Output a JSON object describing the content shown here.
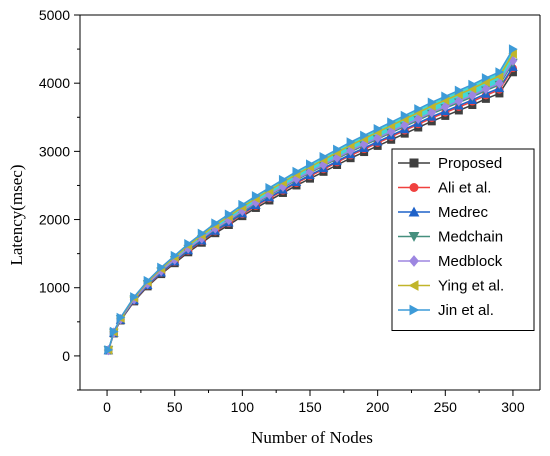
{
  "chart_data": {
    "type": "line",
    "title": "",
    "xlabel": "Number of Nodes",
    "ylabel": "Latency(msec)",
    "xlim": [
      -20,
      320
    ],
    "ylim": [
      -500,
      5000
    ],
    "x_ticks": [
      0,
      50,
      100,
      150,
      200,
      250,
      300
    ],
    "y_ticks": [
      0,
      1000,
      2000,
      3000,
      4000,
      5000
    ],
    "x": [
      1,
      5,
      10,
      20,
      30,
      40,
      50,
      60,
      70,
      80,
      90,
      100,
      110,
      120,
      130,
      140,
      150,
      160,
      170,
      180,
      190,
      200,
      210,
      220,
      230,
      240,
      250,
      260,
      270,
      280,
      290,
      300
    ],
    "grid": false,
    "legend_position": "right",
    "series": [
      {
        "name": "Proposed",
        "marker": "square",
        "color": "#3f3f3f",
        "values": [
          80,
          330,
          520,
          800,
          1020,
          1200,
          1360,
          1520,
          1660,
          1800,
          1920,
          2050,
          2170,
          2280,
          2390,
          2500,
          2600,
          2700,
          2800,
          2900,
          2990,
          3080,
          3170,
          3260,
          3350,
          3440,
          3520,
          3600,
          3680,
          3770,
          3850,
          4160
        ]
      },
      {
        "name": "Ali et al.",
        "marker": "circle",
        "color": "#f0413f",
        "values": [
          82,
          335,
          527,
          811,
          1034,
          1217,
          1379,
          1541,
          1683,
          1825,
          1947,
          2079,
          2200,
          2312,
          2423,
          2535,
          2636,
          2738,
          2839,
          2941,
          3032,
          3123,
          3214,
          3306,
          3397,
          3488,
          3569,
          3650,
          3731,
          3822,
          3904,
          4220
        ]
      },
      {
        "name": "Medrec",
        "marker": "triangle-up",
        "color": "#1f62c9",
        "values": [
          83,
          337,
          530,
          816,
          1040,
          1224,
          1387,
          1550,
          1693,
          1836,
          1958,
          2091,
          2213,
          2326,
          2438,
          2550,
          2652,
          2754,
          2856,
          2958,
          3050,
          3142,
          3233,
          3325,
          3417,
          3509,
          3590,
          3672,
          3754,
          3845,
          3927,
          4240
        ]
      },
      {
        "name": "Medchain",
        "marker": "triangle-down",
        "color": "#458f7e",
        "values": [
          84,
          341,
          537,
          826,
          1053,
          1239,
          1404,
          1569,
          1714,
          1859,
          1982,
          2117,
          2240,
          2354,
          2468,
          2581,
          2685,
          2788,
          2891,
          2994,
          3087,
          3180,
          3273,
          3366,
          3458,
          3551,
          3634,
          3716,
          3799,
          3892,
          3975,
          4300
        ]
      },
      {
        "name": "Medblock",
        "marker": "diamond",
        "color": "#9d86e1",
        "values": [
          85,
          343,
          540,
          831,
          1059,
          1246,
          1412,
          1578,
          1724,
          1869,
          1994,
          2129,
          2253,
          2368,
          2482,
          2596,
          2700,
          2804,
          2907,
          3011,
          3105,
          3198,
          3291,
          3385,
          3478,
          3571,
          3654,
          3738,
          3821,
          3914,
          3997,
          4330
        ]
      },
      {
        "name": "Ying et al.",
        "marker": "triangle-left",
        "color": "#c1b52a",
        "values": [
          87,
          352,
          554,
          853,
          1087,
          1279,
          1449,
          1620,
          1769,
          1918,
          2046,
          2184,
          2312,
          2429,
          2547,
          2664,
          2771,
          2877,
          2984,
          3090,
          3186,
          3282,
          3378,
          3473,
          3569,
          3665,
          3750,
          3835,
          3921,
          4016,
          4102,
          4430
        ]
      },
      {
        "name": "Jin et al.",
        "marker": "triangle-right",
        "color": "#3d9bd8",
        "values": [
          88,
          357,
          563,
          866,
          1103,
          1298,
          1471,
          1644,
          1796,
          1947,
          2077,
          2218,
          2347,
          2466,
          2585,
          2704,
          2813,
          2921,
          3029,
          3137,
          3234,
          3331,
          3429,
          3526,
          3623,
          3720,
          3807,
          3893,
          3980,
          4077,
          4164,
          4500
        ]
      }
    ],
    "fill_band": {
      "from_series": "Medchain",
      "to_series": "Jin et al.",
      "color": "#22d1cf"
    }
  }
}
